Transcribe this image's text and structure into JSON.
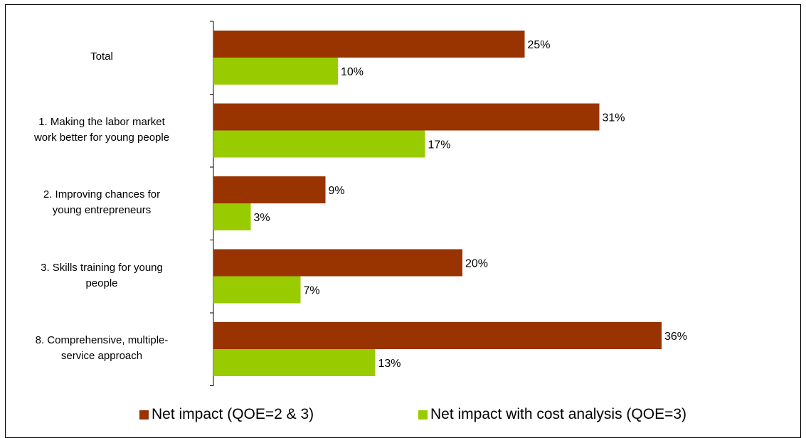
{
  "chart_data": {
    "type": "bar",
    "orientation": "horizontal",
    "categories": [
      "Total",
      "1.  Making the labor market\nwork better for young people",
      "2.  Improving chances for\nyoung entrepreneurs",
      "3.  Skills training for young\npeople",
      "8.  Comprehensive, multiple-\nservice approach"
    ],
    "series": [
      {
        "name": "Net impact (QOE=2 & 3)",
        "color": "#993300",
        "values": [
          25,
          31,
          9,
          20,
          36
        ],
        "labels": [
          "25%",
          "31%",
          "9%",
          "20%",
          "36%"
        ]
      },
      {
        "name": "Net impact with cost analysis (QOE=3)",
        "color": "#99CC00",
        "values": [
          10,
          17,
          3,
          7,
          13
        ],
        "labels": [
          "10%",
          "17%",
          "3%",
          "7%",
          "13%"
        ]
      }
    ],
    "xlim": [
      0,
      40
    ],
    "value_unit": "%",
    "grid": false,
    "legend_position": "bottom"
  }
}
